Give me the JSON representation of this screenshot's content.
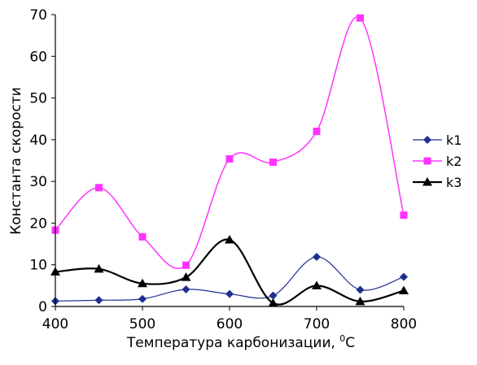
{
  "chart_data": {
    "type": "line",
    "title": "",
    "xlabel": "Температура карбонизации, ",
    "xlabel_unit_sup": "0",
    "xlabel_unit": "C",
    "ylabel": "Константа скорости",
    "x": [
      400,
      450,
      500,
      550,
      600,
      650,
      700,
      750,
      800
    ],
    "xlim": [
      400,
      800
    ],
    "ylim": [
      0,
      70
    ],
    "xticks": [
      "400",
      "500",
      "600",
      "700",
      "800"
    ],
    "yticks": [
      "0",
      "10",
      "20",
      "30",
      "40",
      "50",
      "60",
      "70"
    ],
    "grid": false,
    "legend_position": "right",
    "series": [
      {
        "name": "k1",
        "color": "#1f2f8f",
        "marker": "diamond",
        "values": [
          1.3,
          1.5,
          1.8,
          4.1,
          3.0,
          2.6,
          11.9,
          4.0,
          7.1
        ]
      },
      {
        "name": "k2",
        "color": "#ff33ff",
        "marker": "square",
        "values": [
          18.3,
          28.5,
          16.7,
          9.9,
          35.4,
          34.6,
          42.0,
          69.2,
          21.9
        ]
      },
      {
        "name": "k3",
        "color": "#000000",
        "marker": "triangle",
        "values": [
          8.3,
          9.0,
          5.5,
          7.0,
          16.0,
          0.8,
          5.0,
          1.2,
          3.8
        ]
      }
    ]
  }
}
